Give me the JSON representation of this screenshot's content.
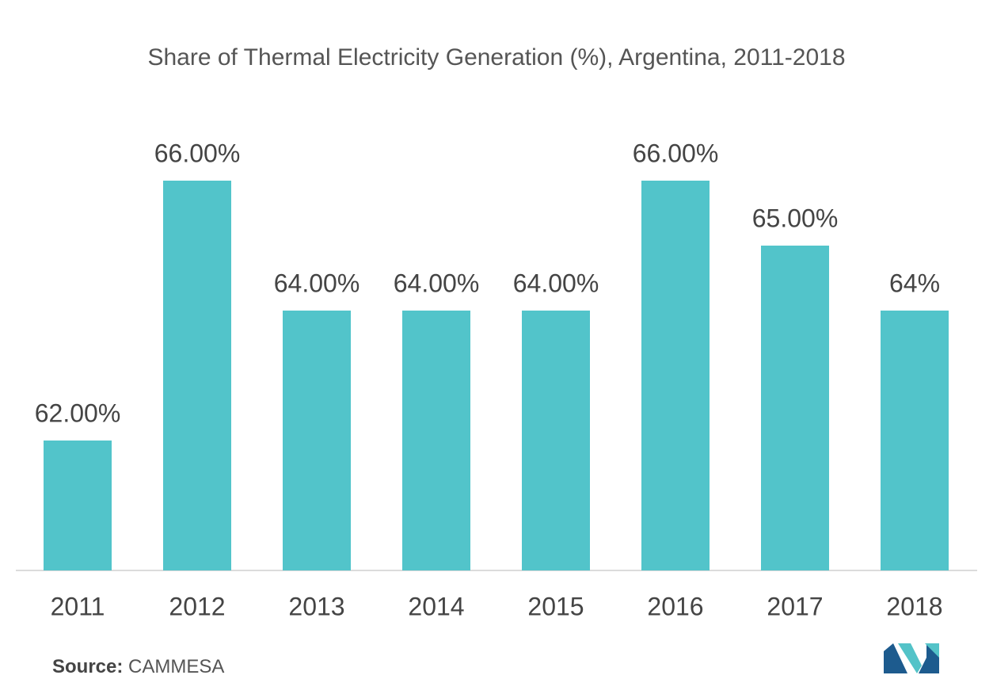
{
  "chart_data": {
    "type": "bar",
    "title": "Share of Thermal Electricity Generation (%), Argentina, 2011-2018",
    "categories": [
      "2011",
      "2012",
      "2013",
      "2014",
      "2015",
      "2016",
      "2017",
      "2018"
    ],
    "values": [
      62,
      66,
      64,
      64,
      64,
      66,
      65,
      64
    ],
    "value_labels": [
      "62.00%",
      "66.00%",
      "64.00%",
      "64.00%",
      "64.00%",
      "66.00%",
      "65.00%",
      "64%"
    ],
    "color": "#52c4ca",
    "ylim": [
      60,
      66
    ]
  },
  "source": {
    "label": "Source:",
    "text": "CAMMESA"
  }
}
